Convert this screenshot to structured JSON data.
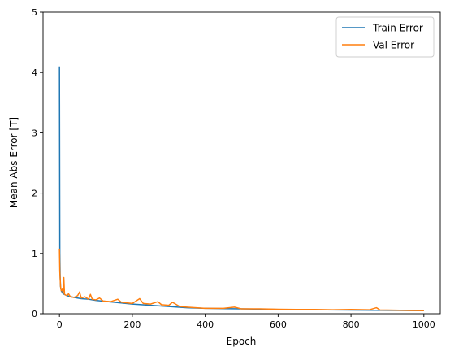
{
  "chart_data": {
    "type": "line",
    "title": "",
    "xlabel": "Epoch",
    "ylabel": "Mean Abs Error [T]",
    "xlim": [
      -45,
      1045
    ],
    "ylim": [
      0,
      5
    ],
    "x_ticks": [
      0,
      200,
      400,
      600,
      800,
      1000
    ],
    "y_ticks": [
      0,
      1,
      2,
      3,
      4,
      5
    ],
    "grid": false,
    "legend_position": "top-right",
    "series": [
      {
        "name": "Train Error",
        "color": "#1f77b4",
        "points": [
          [
            0,
            4.1
          ],
          [
            1,
            1.0
          ],
          [
            2,
            0.6
          ],
          [
            3,
            0.45
          ],
          [
            5,
            0.38
          ],
          [
            10,
            0.33
          ],
          [
            20,
            0.3
          ],
          [
            40,
            0.27
          ],
          [
            60,
            0.25
          ],
          [
            80,
            0.24
          ],
          [
            100,
            0.22
          ],
          [
            150,
            0.19
          ],
          [
            200,
            0.16
          ],
          [
            250,
            0.14
          ],
          [
            300,
            0.12
          ],
          [
            350,
            0.1
          ],
          [
            400,
            0.09
          ],
          [
            450,
            0.085
          ],
          [
            500,
            0.08
          ],
          [
            600,
            0.07
          ],
          [
            700,
            0.065
          ],
          [
            800,
            0.06
          ],
          [
            900,
            0.055
          ],
          [
            1000,
            0.05
          ]
        ]
      },
      {
        "name": "Val Error",
        "color": "#ff7f0e",
        "points": [
          [
            0,
            1.08
          ],
          [
            1,
            0.7
          ],
          [
            3,
            0.45
          ],
          [
            5,
            0.38
          ],
          [
            8,
            0.42
          ],
          [
            10,
            0.34
          ],
          [
            12,
            0.6
          ],
          [
            14,
            0.32
          ],
          [
            20,
            0.3
          ],
          [
            25,
            0.33
          ],
          [
            30,
            0.28
          ],
          [
            40,
            0.27
          ],
          [
            50,
            0.3
          ],
          [
            55,
            0.36
          ],
          [
            60,
            0.26
          ],
          [
            70,
            0.28
          ],
          [
            80,
            0.24
          ],
          [
            85,
            0.32
          ],
          [
            90,
            0.24
          ],
          [
            100,
            0.23
          ],
          [
            110,
            0.26
          ],
          [
            120,
            0.21
          ],
          [
            140,
            0.2
          ],
          [
            160,
            0.24
          ],
          [
            170,
            0.19
          ],
          [
            200,
            0.17
          ],
          [
            220,
            0.25
          ],
          [
            230,
            0.17
          ],
          [
            250,
            0.16
          ],
          [
            270,
            0.2
          ],
          [
            280,
            0.15
          ],
          [
            300,
            0.14
          ],
          [
            310,
            0.19
          ],
          [
            330,
            0.12
          ],
          [
            350,
            0.11
          ],
          [
            400,
            0.09
          ],
          [
            450,
            0.09
          ],
          [
            480,
            0.11
          ],
          [
            500,
            0.08
          ],
          [
            550,
            0.08
          ],
          [
            600,
            0.075
          ],
          [
            650,
            0.07
          ],
          [
            700,
            0.07
          ],
          [
            750,
            0.065
          ],
          [
            800,
            0.07
          ],
          [
            850,
            0.065
          ],
          [
            870,
            0.1
          ],
          [
            880,
            0.06
          ],
          [
            900,
            0.06
          ],
          [
            950,
            0.055
          ],
          [
            1000,
            0.05
          ]
        ]
      }
    ]
  }
}
